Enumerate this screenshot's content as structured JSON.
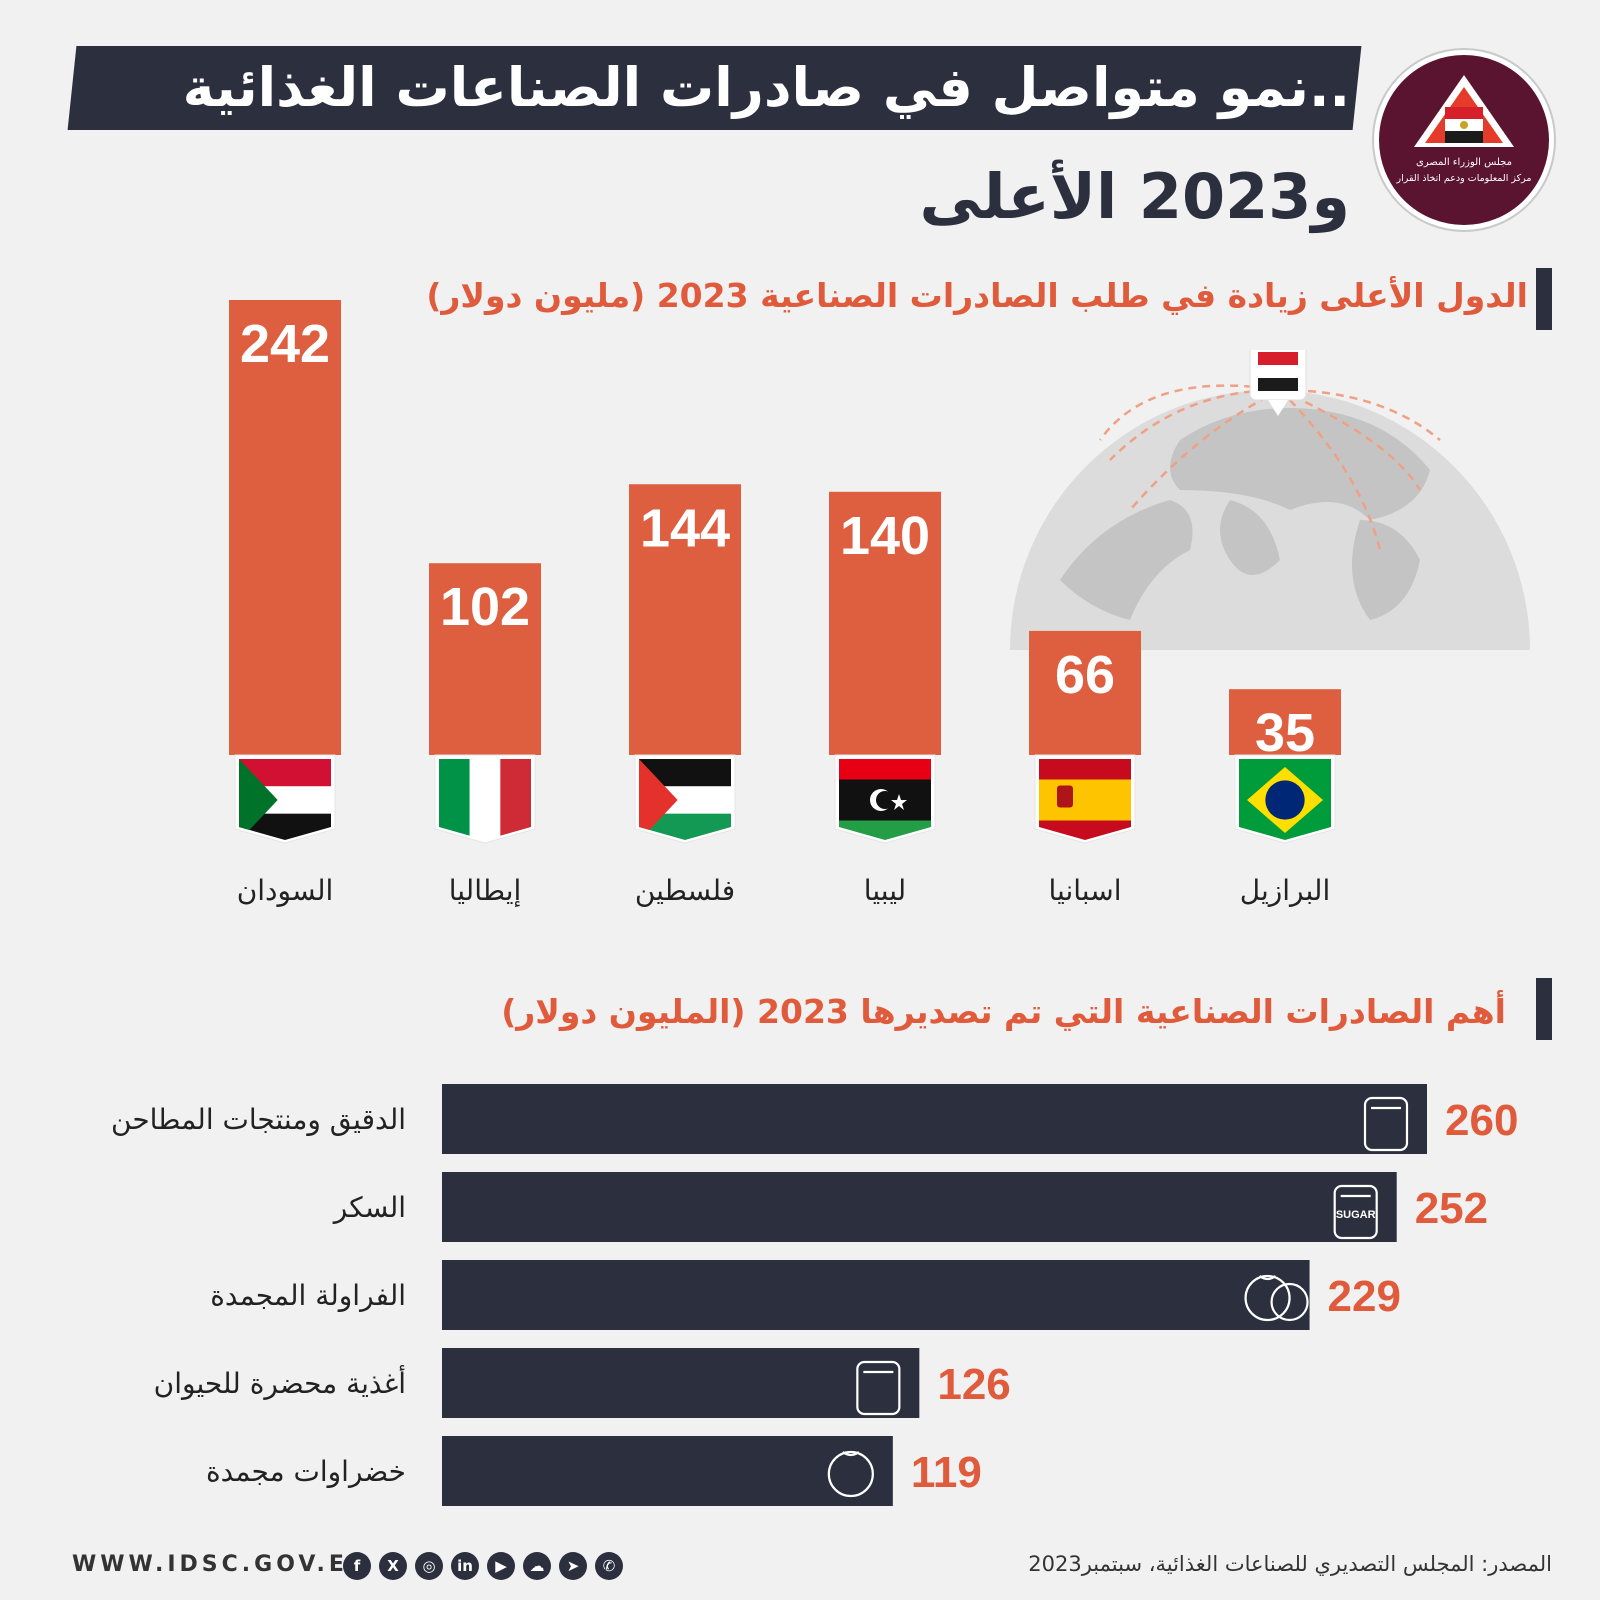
{
  "header": {
    "title_line1": "نمو متواصل في صادرات الصناعات الغذائية..",
    "title_line2": "و2023 الأعلى",
    "logo_text_1": "مجلس الوزراء المصرى",
    "logo_text_2": "مركز المعلومات ودعم اتخاذ القرار"
  },
  "sections": {
    "countries_title": "الدول الأعلى زيادة في طلب الصادرات الصناعية 2023 (مليون دولار)",
    "exports_title": "أهم الصادرات الصناعية التي تم تصديرها 2023  (المليون دولار)"
  },
  "chart_data": [
    {
      "type": "bar",
      "title": "الدول الأعلى زيادة في طلب الصادرات الصناعية 2023 (مليون دولار)",
      "categories": [
        "السودان",
        "إيطاليا",
        "فلسطين",
        "ليبيا",
        "اسبانيا",
        "البرازيل"
      ],
      "values": [
        242,
        102,
        144,
        140,
        66,
        35
      ],
      "flags": [
        "sudan-flag",
        "italy-flag",
        "palestine-flag",
        "libya-flag",
        "spain-flag",
        "brazil-flag"
      ],
      "color": "#dd5f3f"
    },
    {
      "type": "bar",
      "orientation": "horizontal",
      "title": "أهم الصادرات الصناعية التي تم تصديرها 2023  (المليون دولار)",
      "categories": [
        "الدقيق ومنتجات المطاحن",
        "السكر",
        "الفراولة المجمدة",
        "أغذية محضرة للحيوان",
        "خضراوات مجمدة"
      ],
      "values": [
        260,
        252,
        229,
        126,
        119
      ],
      "icons": [
        "flour-bag-icon",
        "sugar-bag-icon",
        "strawberry-icon",
        "pet-food-icon",
        "tomato-icon"
      ],
      "icon_text": [
        "",
        "SUGAR",
        "",
        "",
        ""
      ],
      "color": "#2b2f3e"
    }
  ],
  "footer": {
    "source": "المصدر: المجلس التصديري للصناعات الغذائية، سبتمبر2023",
    "url": "WWW.IDSC.GOV.EG",
    "social": [
      "f",
      "X",
      "◎",
      "in",
      "▶",
      "☁",
      "➤",
      "✆"
    ]
  },
  "colors": {
    "accent": "#dd5f3f",
    "dark": "#2b2f3e",
    "background": "#f1f1f1"
  }
}
